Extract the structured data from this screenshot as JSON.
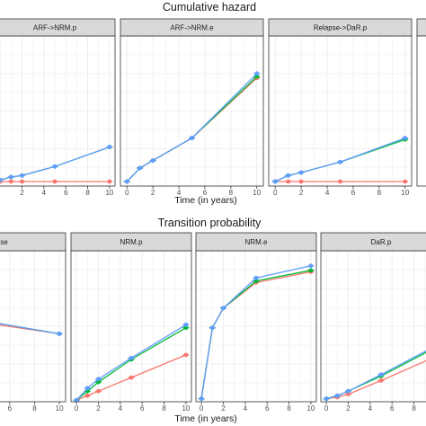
{
  "figure": {
    "top_title": "Cumulative hazard",
    "bottom_title": "Transition probability",
    "xlabel": "Time (in years)"
  },
  "colors": {
    "series_a": "#f8766d",
    "series_b": "#00ba38",
    "series_c": "#619cff",
    "strip_fill": "#d9d9d9",
    "panel_border": "#333333",
    "grid": "#ebebeb"
  },
  "chart_data": [
    {
      "type": "line",
      "panel": "ARF->NRM.p",
      "title": "ARF->NRM.p",
      "x_ticks": [
        "2",
        "4",
        "6",
        "8",
        "10"
      ],
      "xlim": [
        -0.5,
        10.5
      ],
      "ylim": [
        0,
        1
      ],
      "grid": true,
      "series": [
        {
          "color": "#f8766d",
          "x": [
            0,
            1,
            2,
            5,
            10
          ],
          "y": [
            0.03,
            0.03,
            0.03,
            0.03,
            0.03
          ]
        },
        {
          "color": "#00ba38",
          "x": [
            0,
            1,
            2,
            5,
            10
          ],
          "y": [
            0.04,
            0.06,
            0.07,
            0.13,
            0.26
          ]
        },
        {
          "color": "#619cff",
          "x": [
            0,
            1,
            2,
            5,
            10
          ],
          "y": [
            0.04,
            0.06,
            0.07,
            0.13,
            0.26
          ]
        }
      ]
    },
    {
      "type": "line",
      "panel": "ARF->NRM.e",
      "title": "ARF->NRM.e",
      "x_ticks": [
        "0",
        "2",
        "4",
        "6",
        "8",
        "10"
      ],
      "xlim": [
        -0.5,
        10.5
      ],
      "ylim": [
        0,
        1
      ],
      "grid": true,
      "series": [
        {
          "color": "#f8766d",
          "x": [
            0,
            1,
            2,
            5,
            10
          ],
          "y": [
            0.03,
            0.12,
            0.17,
            0.32,
            0.72
          ]
        },
        {
          "color": "#00ba38",
          "x": [
            0,
            1,
            2,
            5,
            10
          ],
          "y": [
            0.03,
            0.12,
            0.17,
            0.32,
            0.73
          ]
        },
        {
          "color": "#619cff",
          "x": [
            0,
            1,
            2,
            5,
            10
          ],
          "y": [
            0.03,
            0.12,
            0.17,
            0.32,
            0.75
          ]
        }
      ]
    },
    {
      "type": "line",
      "panel": "Relapse->DaR.p",
      "title": "Relapse->DaR.p",
      "x_ticks": [
        "0",
        "2",
        "4",
        "6",
        "8",
        "10"
      ],
      "xlim": [
        -0.5,
        10.5
      ],
      "ylim": [
        0,
        1
      ],
      "grid": true,
      "series": [
        {
          "color": "#f8766d",
          "x": [
            0,
            1,
            2,
            5,
            10
          ],
          "y": [
            0.03,
            0.03,
            0.03,
            0.03,
            0.03
          ]
        },
        {
          "color": "#00ba38",
          "x": [
            0,
            1,
            2,
            5,
            10
          ],
          "y": [
            0.03,
            0.07,
            0.09,
            0.16,
            0.31
          ]
        },
        {
          "color": "#619cff",
          "x": [
            0,
            1,
            2,
            5,
            10
          ],
          "y": [
            0.03,
            0.07,
            0.09,
            0.16,
            0.32
          ]
        }
      ]
    },
    {
      "type": "line",
      "panel": "Relapse",
      "title": "elapse",
      "x_ticks": [
        "0",
        "2",
        "4",
        "6",
        "8",
        "10"
      ],
      "xlim": [
        -0.5,
        10.5
      ],
      "ylim": [
        0,
        1
      ],
      "grid": true,
      "series": [
        {
          "color": "#f8766d",
          "x": [
            0,
            1,
            2,
            5,
            10
          ],
          "y": [
            0.55,
            0.55,
            0.54,
            0.51,
            0.45
          ]
        },
        {
          "color": "#00ba38",
          "x": [
            0,
            1,
            2,
            5,
            10
          ],
          "y": [
            0.56,
            0.56,
            0.55,
            0.52,
            0.45
          ]
        },
        {
          "color": "#619cff",
          "x": [
            0,
            1,
            2,
            5,
            10
          ],
          "y": [
            0.58,
            0.57,
            0.56,
            0.52,
            0.45
          ]
        }
      ]
    },
    {
      "type": "line",
      "panel": "NRM.p",
      "title": "NRM.p",
      "x_ticks": [
        "0",
        "2",
        "4",
        "6",
        "8",
        "10"
      ],
      "xlim": [
        -0.5,
        10.5
      ],
      "ylim": [
        0,
        1
      ],
      "grid": true,
      "series": [
        {
          "color": "#f8766d",
          "x": [
            0,
            1,
            2,
            5,
            10
          ],
          "y": [
            0.01,
            0.04,
            0.07,
            0.16,
            0.31
          ]
        },
        {
          "color": "#00ba38",
          "x": [
            0,
            1,
            2,
            5,
            10
          ],
          "y": [
            0.01,
            0.07,
            0.13,
            0.28,
            0.49
          ]
        },
        {
          "color": "#619cff",
          "x": [
            0,
            1,
            2,
            5,
            10
          ],
          "y": [
            0.01,
            0.09,
            0.15,
            0.29,
            0.51
          ]
        }
      ]
    },
    {
      "type": "line",
      "panel": "NRM.e",
      "title": "NRM.e",
      "x_ticks": [
        "0",
        "2",
        "4",
        "6",
        "8",
        "10"
      ],
      "xlim": [
        -0.5,
        10.5
      ],
      "ylim": [
        0,
        1
      ],
      "grid": true,
      "series": [
        {
          "color": "#f8766d",
          "x": [
            0,
            1,
            2,
            5,
            10
          ],
          "y": [
            0.02,
            0.49,
            0.62,
            0.79,
            0.86
          ]
        },
        {
          "color": "#00ba38",
          "x": [
            0,
            1,
            2,
            5,
            10
          ],
          "y": [
            0.02,
            0.49,
            0.62,
            0.8,
            0.87
          ]
        },
        {
          "color": "#619cff",
          "x": [
            0,
            1,
            2,
            5,
            10
          ],
          "y": [
            0.02,
            0.49,
            0.62,
            0.82,
            0.9
          ]
        }
      ]
    },
    {
      "type": "line",
      "panel": "DaR.p",
      "title": "DaR.p",
      "x_ticks": [
        "0",
        "2",
        "4",
        "6",
        "8",
        "10"
      ],
      "xlim": [
        -0.5,
        10.5
      ],
      "ylim": [
        0,
        1
      ],
      "grid": true,
      "series": [
        {
          "color": "#f8766d",
          "x": [
            0,
            1,
            2,
            5,
            10
          ],
          "y": [
            0.02,
            0.03,
            0.05,
            0.14,
            0.3
          ]
        },
        {
          "color": "#00ba38",
          "x": [
            0,
            1,
            2,
            5,
            10
          ],
          "y": [
            0.02,
            0.04,
            0.07,
            0.17,
            0.36
          ]
        },
        {
          "color": "#619cff",
          "x": [
            0,
            1,
            2,
            5,
            10
          ],
          "y": [
            0.02,
            0.04,
            0.07,
            0.18,
            0.37
          ]
        }
      ]
    }
  ]
}
